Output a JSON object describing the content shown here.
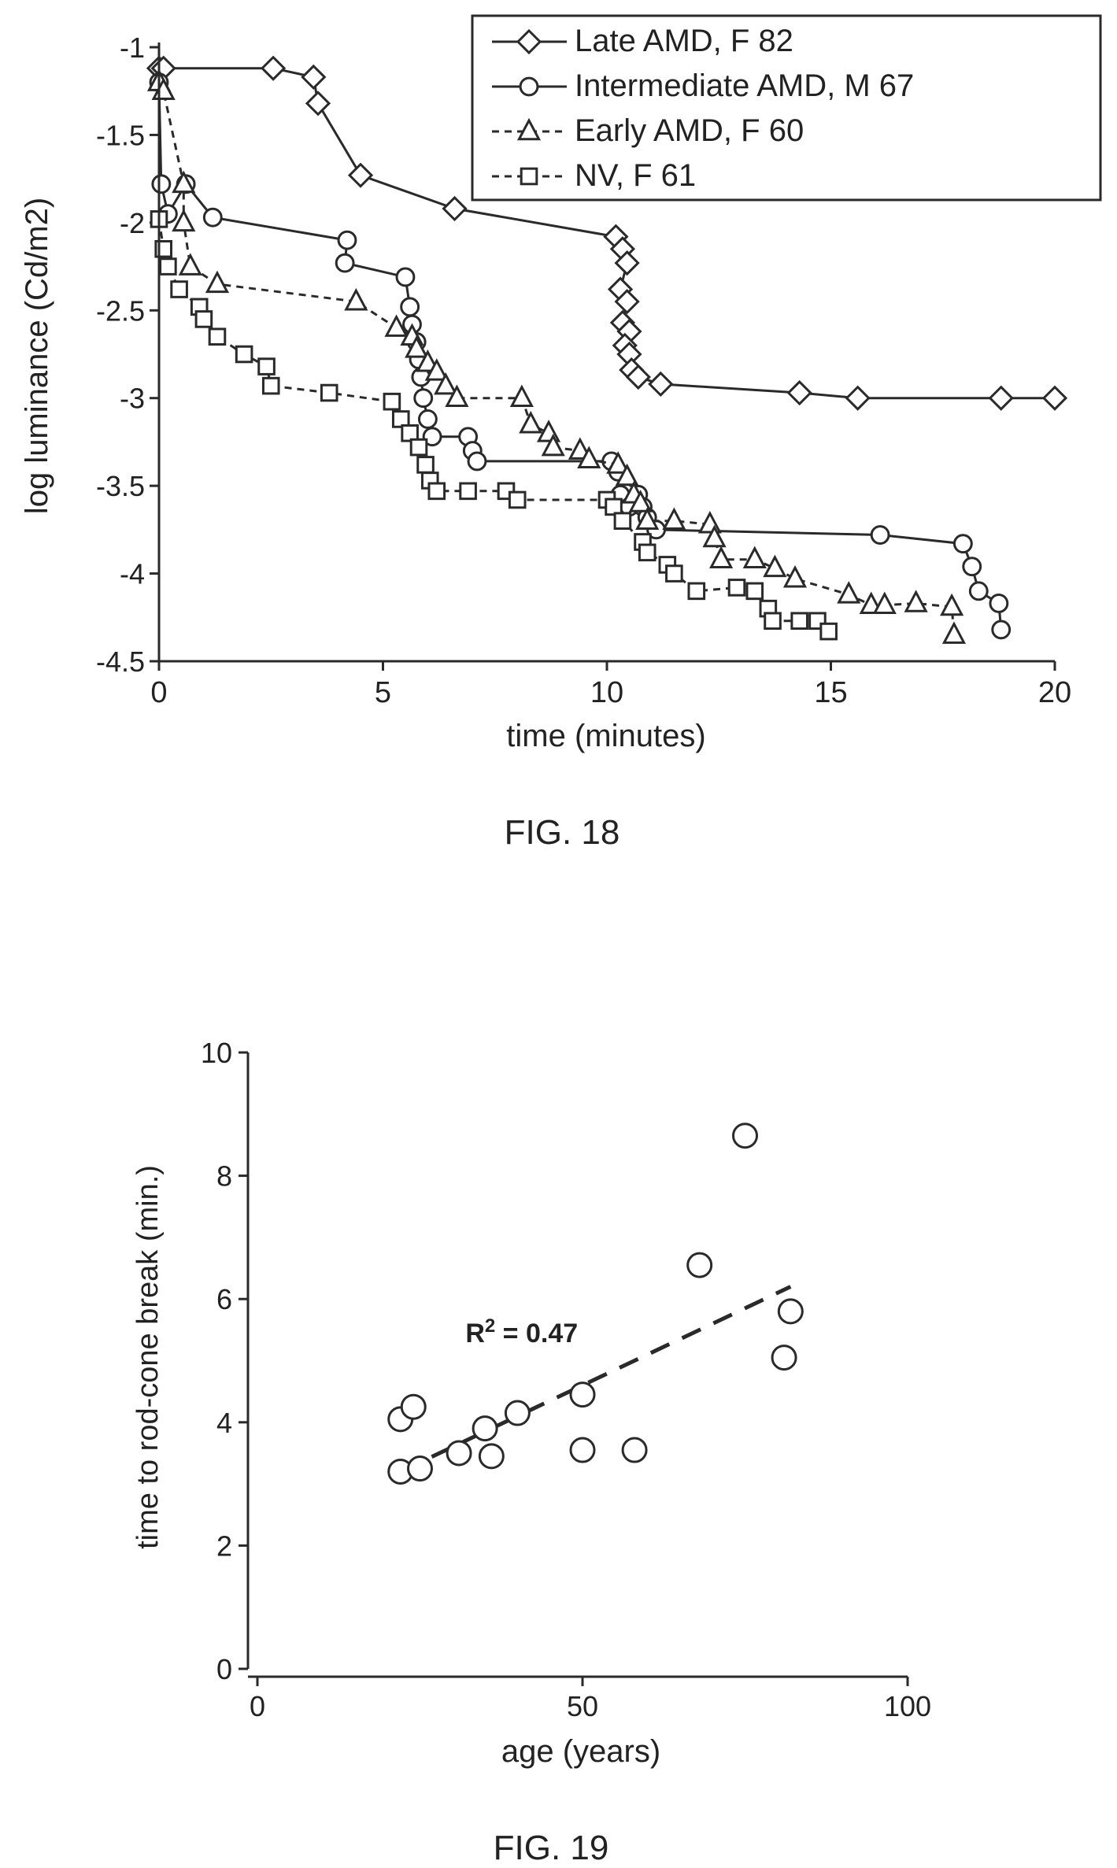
{
  "colors": {
    "ink": "#2a2a2a",
    "background": "#ffffff"
  },
  "chart_data": [
    {
      "type": "line",
      "caption": "FIG. 18",
      "xlabel": "time (minutes)",
      "ylabel": "log luminance (Cd/m2)",
      "xlim": [
        0,
        20
      ],
      "ylim": [
        -4.5,
        -1
      ],
      "xticks": [
        0,
        5,
        10,
        15,
        20
      ],
      "yticks": [
        -1,
        -1.5,
        -2,
        -2.5,
        -3,
        -3.5,
        -4,
        -4.5
      ],
      "ytick_labels": [
        "-1",
        "-1.5",
        "-2",
        "-2.5",
        "-3",
        "-3.5",
        "-4",
        "-4.5"
      ],
      "grid": false,
      "legend": "top-right",
      "series": [
        {
          "name": "Late AMD, F 82",
          "marker": "diamond",
          "line": "solid",
          "points": [
            [
              0.0,
              -1.12
            ],
            [
              0.1,
              -1.12
            ],
            [
              2.55,
              -1.12
            ],
            [
              3.45,
              -1.17
            ],
            [
              3.55,
              -1.32
            ],
            [
              4.5,
              -1.73
            ],
            [
              6.6,
              -1.92
            ],
            [
              10.2,
              -2.08
            ],
            [
              10.35,
              -2.15
            ],
            [
              10.45,
              -2.23
            ],
            [
              10.3,
              -2.38
            ],
            [
              10.45,
              -2.45
            ],
            [
              10.35,
              -2.57
            ],
            [
              10.5,
              -2.62
            ],
            [
              10.4,
              -2.7
            ],
            [
              10.5,
              -2.75
            ],
            [
              10.55,
              -2.84
            ],
            [
              10.7,
              -2.88
            ],
            [
              11.2,
              -2.92
            ],
            [
              14.3,
              -2.97
            ],
            [
              15.6,
              -3.0
            ],
            [
              18.8,
              -3.0
            ],
            [
              20.0,
              -3.0
            ]
          ]
        },
        {
          "name": "Intermediate AMD, M 67",
          "marker": "circle",
          "line": "solid",
          "points": [
            [
              0.0,
              -1.2
            ],
            [
              0.05,
              -1.78
            ],
            [
              0.2,
              -1.95
            ],
            [
              0.6,
              -1.78
            ],
            [
              1.2,
              -1.97
            ],
            [
              4.2,
              -2.1
            ],
            [
              4.15,
              -2.23
            ],
            [
              5.5,
              -2.31
            ],
            [
              5.6,
              -2.48
            ],
            [
              5.65,
              -2.58
            ],
            [
              5.75,
              -2.68
            ],
            [
              5.8,
              -2.78
            ],
            [
              5.85,
              -2.88
            ],
            [
              5.9,
              -3.0
            ],
            [
              6.0,
              -3.12
            ],
            [
              6.1,
              -3.22
            ],
            [
              6.9,
              -3.22
            ],
            [
              7.0,
              -3.3
            ],
            [
              7.1,
              -3.36
            ],
            [
              10.1,
              -3.36
            ],
            [
              10.25,
              -3.42
            ],
            [
              10.3,
              -3.55
            ],
            [
              10.5,
              -3.62
            ],
            [
              10.7,
              -3.55
            ],
            [
              10.8,
              -3.62
            ],
            [
              10.9,
              -3.68
            ],
            [
              11.1,
              -3.75
            ],
            [
              16.1,
              -3.78
            ],
            [
              17.95,
              -3.83
            ],
            [
              18.15,
              -3.96
            ],
            [
              18.3,
              -4.1
            ],
            [
              18.75,
              -4.17
            ],
            [
              18.8,
              -4.32
            ]
          ]
        },
        {
          "name": "Early AMD, F 60",
          "marker": "triangle",
          "line": "dashed",
          "points": [
            [
              0.0,
              -1.2
            ],
            [
              0.1,
              -1.25
            ],
            [
              0.55,
              -1.78
            ],
            [
              0.55,
              -2.0
            ],
            [
              0.7,
              -2.25
            ],
            [
              1.3,
              -2.35
            ],
            [
              4.4,
              -2.45
            ],
            [
              5.3,
              -2.6
            ],
            [
              5.65,
              -2.65
            ],
            [
              5.75,
              -2.72
            ],
            [
              6.0,
              -2.8
            ],
            [
              6.2,
              -2.85
            ],
            [
              6.4,
              -2.93
            ],
            [
              6.65,
              -3.0
            ],
            [
              8.1,
              -3.0
            ],
            [
              8.3,
              -3.15
            ],
            [
              8.7,
              -3.2
            ],
            [
              8.8,
              -3.28
            ],
            [
              9.4,
              -3.3
            ],
            [
              9.6,
              -3.35
            ],
            [
              10.25,
              -3.38
            ],
            [
              10.45,
              -3.45
            ],
            [
              10.6,
              -3.55
            ],
            [
              10.75,
              -3.6
            ],
            [
              10.9,
              -3.7
            ],
            [
              11.5,
              -3.7
            ],
            [
              12.3,
              -3.72
            ],
            [
              12.4,
              -3.8
            ],
            [
              12.55,
              -3.92
            ],
            [
              13.3,
              -3.92
            ],
            [
              13.75,
              -3.97
            ],
            [
              14.2,
              -4.03
            ],
            [
              15.4,
              -4.12
            ],
            [
              15.9,
              -4.18
            ],
            [
              16.2,
              -4.18
            ],
            [
              16.9,
              -4.17
            ],
            [
              17.7,
              -4.19
            ],
            [
              17.75,
              -4.35
            ]
          ]
        },
        {
          "name": "NV, F 61",
          "marker": "square",
          "line": "dashed",
          "points": [
            [
              0.0,
              -1.98
            ],
            [
              0.1,
              -2.15
            ],
            [
              0.2,
              -2.25
            ],
            [
              0.45,
              -2.38
            ],
            [
              0.9,
              -2.48
            ],
            [
              1.0,
              -2.55
            ],
            [
              1.3,
              -2.65
            ],
            [
              1.9,
              -2.75
            ],
            [
              2.4,
              -2.82
            ],
            [
              2.5,
              -2.93
            ],
            [
              3.8,
              -2.97
            ],
            [
              5.2,
              -3.02
            ],
            [
              5.4,
              -3.12
            ],
            [
              5.6,
              -3.2
            ],
            [
              5.8,
              -3.28
            ],
            [
              5.95,
              -3.38
            ],
            [
              6.05,
              -3.47
            ],
            [
              6.2,
              -3.53
            ],
            [
              6.9,
              -3.53
            ],
            [
              7.75,
              -3.53
            ],
            [
              8.0,
              -3.58
            ],
            [
              10.0,
              -3.58
            ],
            [
              10.15,
              -3.62
            ],
            [
              10.35,
              -3.7
            ],
            [
              10.8,
              -3.82
            ],
            [
              10.9,
              -3.88
            ],
            [
              11.35,
              -3.95
            ],
            [
              11.5,
              -4.0
            ],
            [
              12.0,
              -4.1
            ],
            [
              12.9,
              -4.08
            ],
            [
              13.3,
              -4.1
            ],
            [
              13.6,
              -4.2
            ],
            [
              13.7,
              -4.27
            ],
            [
              14.3,
              -4.27
            ],
            [
              14.7,
              -4.27
            ],
            [
              14.95,
              -4.33
            ]
          ]
        }
      ]
    },
    {
      "type": "scatter",
      "caption": "FIG. 19",
      "xlabel": "age (years)",
      "ylabel": "time to rod-cone break (min.)",
      "xlim": [
        0,
        100
      ],
      "ylim": [
        0,
        10
      ],
      "xticks": [
        0,
        50,
        100
      ],
      "yticks": [
        0,
        2,
        4,
        6,
        8,
        10
      ],
      "grid": false,
      "annotation": {
        "text": "R",
        "superscript": "2",
        "suffix": " = 0.47",
        "x": 32,
        "y": 5.3
      },
      "trendline": {
        "style": "dashed",
        "x": [
          22,
          82
        ],
        "y": [
          3.2,
          6.2
        ]
      },
      "points": [
        [
          22,
          4.05
        ],
        [
          24,
          4.25
        ],
        [
          22,
          3.2
        ],
        [
          25,
          3.25
        ],
        [
          31,
          3.5
        ],
        [
          35,
          3.9
        ],
        [
          36,
          3.45
        ],
        [
          40,
          4.15
        ],
        [
          50,
          4.45
        ],
        [
          50,
          3.55
        ],
        [
          58,
          3.55
        ],
        [
          68,
          6.55
        ],
        [
          75,
          8.65
        ],
        [
          81,
          5.05
        ],
        [
          82,
          5.8
        ]
      ]
    }
  ]
}
